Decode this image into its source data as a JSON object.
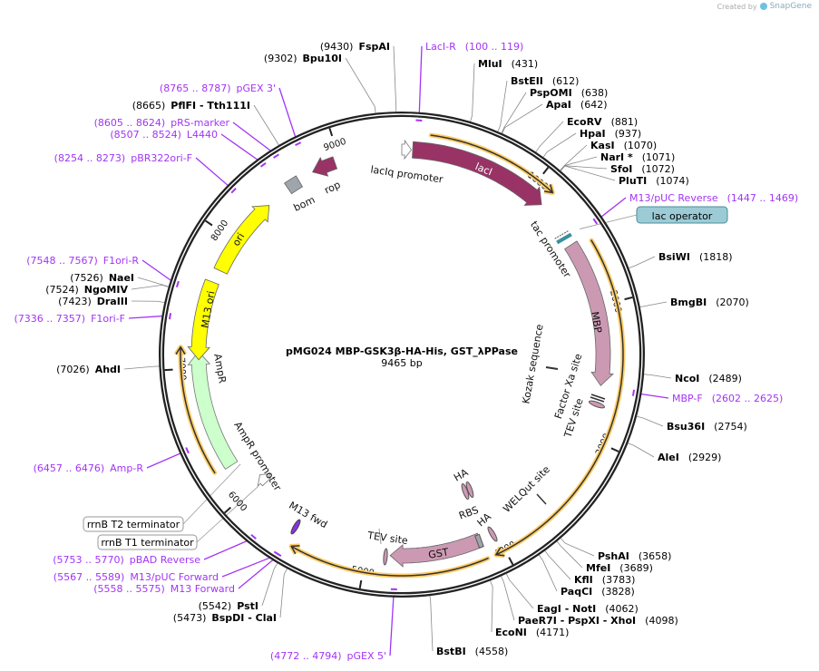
{
  "header": {
    "created_by": "Created by",
    "brand": "SnapGene"
  },
  "plasmid": {
    "name": "pMG024 MBP-GSK3β-HA-His, GST_λPPase",
    "length_label": "9465 bp",
    "length": 9465
  },
  "ticks": [
    "1000",
    "2000",
    "3000",
    "4000",
    "5000",
    "6000",
    "7000",
    "8000",
    "9000"
  ],
  "enzymes": [
    {
      "name": "MluI",
      "pos": "(431)",
      "bp": 431
    },
    {
      "name": "BstEII",
      "pos": "(612)",
      "bp": 612
    },
    {
      "name": "PspOMI",
      "pos": "(638)",
      "bp": 638
    },
    {
      "name": "ApaI",
      "pos": "(642)",
      "bp": 642
    },
    {
      "name": "EcoRV",
      "pos": "(881)",
      "bp": 881
    },
    {
      "name": "HpaI",
      "pos": "(937)",
      "bp": 937
    },
    {
      "name": "KasI",
      "pos": "(1070)",
      "bp": 1070
    },
    {
      "name": "NarI *",
      "pos": "(1071)",
      "bp": 1071
    },
    {
      "name": "SfoI",
      "pos": "(1072)",
      "bp": 1072
    },
    {
      "name": "PluTI",
      "pos": "(1074)",
      "bp": 1074
    },
    {
      "name": "BsiWI",
      "pos": "(1818)",
      "bp": 1818
    },
    {
      "name": "BmgBI",
      "pos": "(2070)",
      "bp": 2070
    },
    {
      "name": "NcoI",
      "pos": "(2489)",
      "bp": 2489
    },
    {
      "name": "Bsu36I",
      "pos": "(2754)",
      "bp": 2754
    },
    {
      "name": "AleI",
      "pos": "(2929)",
      "bp": 2929
    },
    {
      "name": "PshAI",
      "pos": "(3658)",
      "bp": 3658
    },
    {
      "name": "MfeI",
      "pos": "(3689)",
      "bp": 3689
    },
    {
      "name": "KflI",
      "pos": "(3783)",
      "bp": 3783
    },
    {
      "name": "PaqCI",
      "pos": "(3828)",
      "bp": 3828
    },
    {
      "name": "EagI  - NotI",
      "pos": "(4062)",
      "bp": 4062
    },
    {
      "name": "PaeR7I  - PspXI  - XhoI",
      "pos": "(4098)",
      "bp": 4098
    },
    {
      "name": "EcoNI",
      "pos": "(4171)",
      "bp": 4171
    },
    {
      "name": "BstBI",
      "pos": "(4558)",
      "bp": 4558
    },
    {
      "name": "FspAI",
      "pos": "(9430)",
      "bp": 9430
    },
    {
      "name": "Bpu10I",
      "pos": "(9302)",
      "bp": 9302
    },
    {
      "name": "PflFI  - Tth111I",
      "pos": "(8665)",
      "bp": 8665
    },
    {
      "name": "NaeI",
      "pos": "(7526)",
      "bp": 7526
    },
    {
      "name": "NgoMIV",
      "pos": "(7524)",
      "bp": 7524
    },
    {
      "name": "DraIII",
      "pos": "(7423)",
      "bp": 7423
    },
    {
      "name": "AhdI",
      "pos": "(7026)",
      "bp": 7026
    },
    {
      "name": "PstI",
      "pos": "(5542)",
      "bp": 5542
    },
    {
      "name": "BspDI  - ClaI",
      "pos": "(5473)",
      "bp": 5473
    }
  ],
  "primers": [
    {
      "name": "LacI-R",
      "range": "(100 .. 119)",
      "bp": 110
    },
    {
      "name": "M13/pUC Reverse",
      "range": "(1447 .. 1469)",
      "bp": 1458
    },
    {
      "name": "MBP-F",
      "range": "(2602 .. 2625)",
      "bp": 2613
    },
    {
      "name": "pGEX 3'",
      "range": "(8765 .. 8787)",
      "bp": 8776
    },
    {
      "name": "pRS-marker",
      "range": "(8605 .. 8624)",
      "bp": 8615
    },
    {
      "name": "L4440",
      "range": "(8507 .. 8524)",
      "bp": 8515
    },
    {
      "name": "pBR322ori-F",
      "range": "(8254 .. 8273)",
      "bp": 8263
    },
    {
      "name": "F1ori-R",
      "range": "(7548 .. 7567)",
      "bp": 7557
    },
    {
      "name": "F1ori-F",
      "range": "(7336 .. 7357)",
      "bp": 7346
    },
    {
      "name": "Amp-R",
      "range": "(6457 .. 6476)",
      "bp": 6466
    },
    {
      "name": "pBAD Reverse",
      "range": "(5753 .. 5770)",
      "bp": 5761
    },
    {
      "name": "M13/pUC Forward",
      "range": "(5567 .. 5589)",
      "bp": 5578
    },
    {
      "name": "M13 Forward",
      "range": "(5558 .. 5575)",
      "bp": 5566
    },
    {
      "name": "pGEX 5'",
      "range": "(4772 .. 4794)",
      "bp": 4783
    }
  ],
  "boxed": [
    {
      "name": "lac operator",
      "bp": 1440
    },
    {
      "name": "rrnB T2 terminator",
      "bp": 6200
    },
    {
      "name": "rrnB T1 terminator",
      "bp": 5980
    }
  ],
  "features": [
    {
      "label": "lacIq promoter",
      "start": 0,
      "end": 70,
      "dir": "cw",
      "color": "#ffffff"
    },
    {
      "label": "lacI",
      "start": 80,
      "end": 1130,
      "dir": "cw",
      "color": "#993366"
    },
    {
      "label": "MBP",
      "start": 1500,
      "end": 2600,
      "dir": "cw",
      "color": "#cc99b3"
    },
    {
      "label": "GST",
      "start": 4130,
      "end": 4820,
      "dir": "cw",
      "color": "#cc99b3"
    },
    {
      "label": "AmpR promoter",
      "start": 5960,
      "end": 6040,
      "dir": "cw",
      "color": "#ffffff"
    },
    {
      "label": "AmpR",
      "start": 6230,
      "end": 7120,
      "dir": "cw",
      "color": "#ccffcc"
    },
    {
      "label": "M13 ori",
      "start": 7650,
      "end": 7060,
      "dir": "ccw",
      "color": "#ffff00"
    },
    {
      "label": "ori",
      "start": 7750,
      "end": 8370,
      "dir": "cw",
      "color": "#ffff00"
    },
    {
      "label": "bom",
      "start": 8560,
      "end": 8660,
      "dir": "none",
      "color": "#a0a4ab"
    },
    {
      "label": "rop",
      "start": 8960,
      "end": 8780,
      "dir": "ccw",
      "color": "#993366"
    }
  ],
  "orfs": [
    {
      "start": 200,
      "end": 1130
    },
    {
      "start": 1550,
      "end": 4070
    },
    {
      "start": 4130,
      "end": 5520
    },
    {
      "start": 6250,
      "end": 7150
    }
  ],
  "feature_labels": {
    "lacIq_promoter": "lacIq promoter",
    "lacI": "lacI",
    "tac_promoter": "tac promoter",
    "MBP": "MBP",
    "kozak": "Kozak sequence",
    "factor_xa": "Factor Xa site",
    "tev1": "TEV site",
    "welqut": "WELQut site",
    "ha1": "HA",
    "ha2": "HA",
    "rbs": "RBS",
    "gst": "GST",
    "tev2": "TEV site",
    "m13fwd": "M13 fwd",
    "ampr_promoter": "AmpR promoter",
    "ampr": "AmpR",
    "m13ori": "M13 ori",
    "ori": "ori",
    "rop": "rop",
    "bom": "bom"
  },
  "colors": {
    "primer": "#a334f5",
    "orf_halo": "#ffcc66",
    "ring": "#222222",
    "lac_operator": "#9ccbd6"
  }
}
